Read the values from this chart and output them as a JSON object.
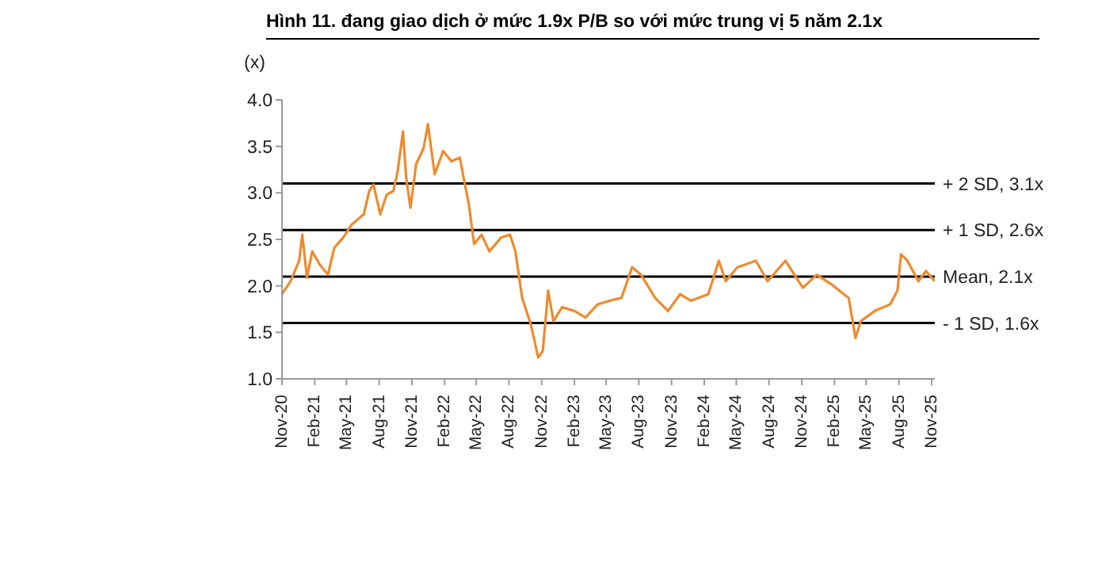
{
  "chart_data": {
    "type": "line",
    "title": "Hình 11. đang giao dịch ở mức 1.9x P/B so với mức trung vị 5 năm 2.1x",
    "ylabel": "(x)",
    "x": [
      "2020-11-01",
      "2020-11-25",
      "2020-12-19",
      "2020-12-28",
      "2021-01-10",
      "2021-01-25",
      "2021-02-15",
      "2021-03-10",
      "2021-03-28",
      "2021-04-22",
      "2021-05-16",
      "2021-06-19",
      "2021-07-04",
      "2021-07-16",
      "2021-08-04",
      "2021-08-22",
      "2021-09-10",
      "2021-09-22",
      "2021-10-07",
      "2021-10-16",
      "2021-10-28",
      "2021-11-13",
      "2021-12-04",
      "2021-12-16",
      "2022-01-04",
      "2022-01-28",
      "2022-02-20",
      "2022-03-16",
      "2022-03-28",
      "2022-04-10",
      "2022-04-25",
      "2022-05-16",
      "2022-06-07",
      "2022-07-10",
      "2022-08-04",
      "2022-08-19",
      "2022-09-07",
      "2022-10-01",
      "2022-10-22",
      "2022-11-04",
      "2022-11-19",
      "2022-12-04",
      "2022-12-28",
      "2023-02-01",
      "2023-03-04",
      "2023-04-07",
      "2023-05-10",
      "2023-06-13",
      "2023-07-13",
      "2023-08-07",
      "2023-09-16",
      "2023-10-22",
      "2023-11-25",
      "2023-12-25",
      "2024-02-12",
      "2024-03-13",
      "2024-04-01",
      "2024-05-04",
      "2024-06-25",
      "2024-07-28",
      "2024-09-16",
      "2024-11-04",
      "2024-12-13",
      "2025-01-22",
      "2025-03-13",
      "2025-04-01",
      "2025-04-16",
      "2025-05-25",
      "2025-07-07",
      "2025-07-28",
      "2025-08-07",
      "2025-08-25",
      "2025-09-25",
      "2025-10-16",
      "2025-11-10"
    ],
    "series": [
      {
        "color": "#ed8b2f",
        "values": [
          1.91,
          2.05,
          2.27,
          2.55,
          2.09,
          2.37,
          2.23,
          2.12,
          2.41,
          2.52,
          2.66,
          2.77,
          3.02,
          3.09,
          2.77,
          2.98,
          3.02,
          3.23,
          3.66,
          3.16,
          2.84,
          3.31,
          3.48,
          3.74,
          3.2,
          3.45,
          3.34,
          3.38,
          3.13,
          2.88,
          2.45,
          2.55,
          2.37,
          2.52,
          2.55,
          2.37,
          1.87,
          1.59,
          1.23,
          1.3,
          1.95,
          1.62,
          1.77,
          1.73,
          1.66,
          1.8,
          1.84,
          1.87,
          2.2,
          2.12,
          1.87,
          1.73,
          1.91,
          1.84,
          1.91,
          2.27,
          2.05,
          2.2,
          2.27,
          2.05,
          2.27,
          1.98,
          2.12,
          2.02,
          1.87,
          1.44,
          1.62,
          1.73,
          1.8,
          1.95,
          2.34,
          2.27,
          2.05,
          2.16,
          2.05
        ]
      }
    ],
    "xlim": [
      "2020-11-01",
      "2025-11-10"
    ],
    "xticks": [
      {
        "value": "2020-11-01",
        "label": "Nov-20"
      },
      {
        "value": "2021-02-01",
        "label": "Feb-21"
      },
      {
        "value": "2021-05-01",
        "label": "May-21"
      },
      {
        "value": "2021-08-01",
        "label": "Aug-21"
      },
      {
        "value": "2021-11-01",
        "label": "Nov-21"
      },
      {
        "value": "2022-02-01",
        "label": "Feb-22"
      },
      {
        "value": "2022-05-01",
        "label": "May-22"
      },
      {
        "value": "2022-08-01",
        "label": "Aug-22"
      },
      {
        "value": "2022-11-01",
        "label": "Nov-22"
      },
      {
        "value": "2023-02-01",
        "label": "Feb-23"
      },
      {
        "value": "2023-05-01",
        "label": "May-23"
      },
      {
        "value": "2023-08-01",
        "label": "Aug-23"
      },
      {
        "value": "2023-11-01",
        "label": "Nov-23"
      },
      {
        "value": "2024-02-01",
        "label": "Feb-24"
      },
      {
        "value": "2024-05-01",
        "label": "May-24"
      },
      {
        "value": "2024-08-01",
        "label": "Aug-24"
      },
      {
        "value": "2024-11-01",
        "label": "Nov-24"
      },
      {
        "value": "2025-02-01",
        "label": "Feb-25"
      },
      {
        "value": "2025-05-01",
        "label": "May-25"
      },
      {
        "value": "2025-08-01",
        "label": "Aug-25"
      },
      {
        "value": "2025-11-01",
        "label": "Nov-25"
      }
    ],
    "ylim": [
      1,
      4
    ],
    "yticks": [
      {
        "value": 1,
        "label": "1.0"
      },
      {
        "value": 1.5,
        "label": "1.5"
      },
      {
        "value": 2,
        "label": "2.0"
      },
      {
        "value": 2.5,
        "label": "2.5"
      },
      {
        "value": 3,
        "label": "3.0"
      },
      {
        "value": 3.5,
        "label": "3.5"
      },
      {
        "value": 4,
        "label": "4.0"
      }
    ],
    "ref_lines": [
      {
        "axis": "y",
        "value": 3.1,
        "label": "+ 2 SD, 3.1x",
        "color": "#000000"
      },
      {
        "axis": "y",
        "value": 2.6,
        "label": "+ 1 SD, 2.6x",
        "color": "#000000"
      },
      {
        "axis": "y",
        "value": 2.1,
        "label": "Mean, 2.1x",
        "color": "#000000"
      },
      {
        "axis": "y",
        "value": 1.6,
        "label": "- 1 SD, 1.6x",
        "color": "#000000"
      }
    ],
    "grid": false,
    "legend": false,
    "marker": "none",
    "line_style": "solid"
  }
}
